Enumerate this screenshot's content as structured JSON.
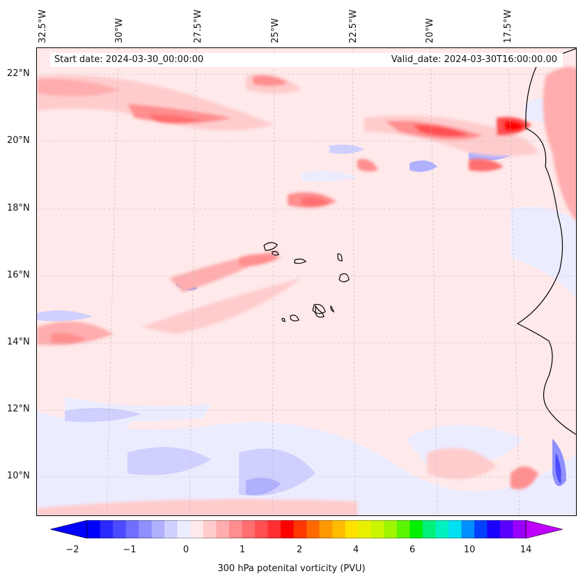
{
  "map": {
    "start_date": "Start date: 2024-03-30_00:00:00",
    "valid_date": "Valid_date: 2024-03-30T16:00:00.00",
    "lat_labels": [
      "22°N",
      "20°N",
      "18°N",
      "16°N",
      "14°N",
      "12°N",
      "10°N"
    ],
    "lon_labels": [
      "32.5°W",
      "30°W",
      "27.5°W",
      "25°W",
      "22.5°W",
      "20°W",
      "17.5°W"
    ],
    "colorbar": {
      "title": "300 hPa potenital vorticity (PVU)",
      "ticks": [
        "−2",
        "−1",
        "0",
        "1",
        "2",
        "4",
        "6",
        "10",
        "14"
      ],
      "colors": [
        "#0000ff",
        "#2a2aff",
        "#4b4bff",
        "#6f6fff",
        "#8f8fff",
        "#b0b0ff",
        "#d0d0ff",
        "#ececff",
        "#ffe9ea",
        "#ffcccd",
        "#ffadae",
        "#ff8e8f",
        "#ff6e70",
        "#ff4f51",
        "#ff2f31",
        "#ff0000",
        "#ff3700",
        "#ff6a00",
        "#ff9900",
        "#ffbc00",
        "#ffe100",
        "#e8f000",
        "#c8f500",
        "#a0f500",
        "#5af500",
        "#00f000",
        "#00f07a",
        "#00f0c0",
        "#00e0f0",
        "#0090ff",
        "#0040ff",
        "#1a00ff",
        "#5a00ff",
        "#9a00ff"
      ],
      "under_color": "#0000ff",
      "over_color": "#c000ff"
    }
  }
}
